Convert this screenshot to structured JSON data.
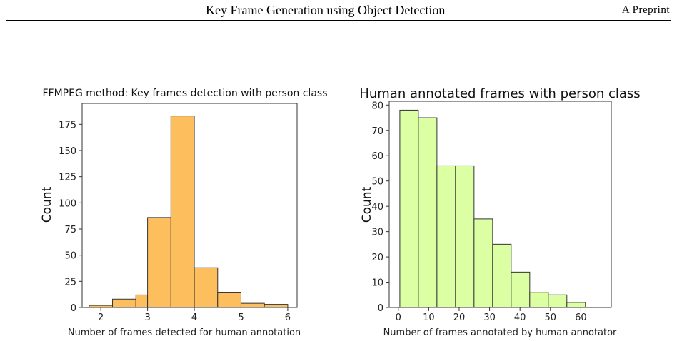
{
  "header": {
    "title": "Key Frame Generation using Object Detection",
    "label": "A Preprint"
  },
  "chart_data": [
    {
      "type": "bar",
      "title": "FFMPEG method: Key frames detection with person class",
      "xlabel": "Number of frames detected for human annotation",
      "ylabel": "Count",
      "xlim": [
        1.6,
        6.2
      ],
      "ylim": [
        0,
        195
      ],
      "xticks": [
        2,
        3,
        4,
        5,
        6
      ],
      "yticks": [
        0,
        25,
        50,
        75,
        100,
        125,
        150,
        175
      ],
      "bin_edges": [
        1.75,
        2.25,
        2.75,
        3.0,
        3.5,
        4.0,
        4.5,
        5.0,
        5.5,
        6.0
      ],
      "values": [
        2,
        8,
        12,
        86,
        183,
        38,
        14,
        4,
        3
      ],
      "bar_color": "#fdbf5e",
      "edge_color": "#333333",
      "grid": false
    },
    {
      "type": "bar",
      "title": "Human annotated frames with person class",
      "xlabel": "Number of frames annotated by human annotator",
      "ylabel": "Count",
      "xlim": [
        -3,
        70
      ],
      "ylim": [
        0,
        81.5
      ],
      "xticks": [
        0,
        10,
        20,
        30,
        40,
        50,
        60
      ],
      "yticks": [
        0,
        10,
        20,
        30,
        40,
        50,
        60,
        70,
        80
      ],
      "bin_edges": [
        0.5,
        6.6,
        12.7,
        18.8,
        24.9,
        31.0,
        37.1,
        43.2,
        49.3,
        55.4,
        61.5
      ],
      "values": [
        78,
        75,
        56,
        56,
        35,
        25,
        14,
        6,
        5,
        2
      ],
      "bar_color": "#dcffa3",
      "edge_color": "#333333",
      "grid": false
    }
  ]
}
